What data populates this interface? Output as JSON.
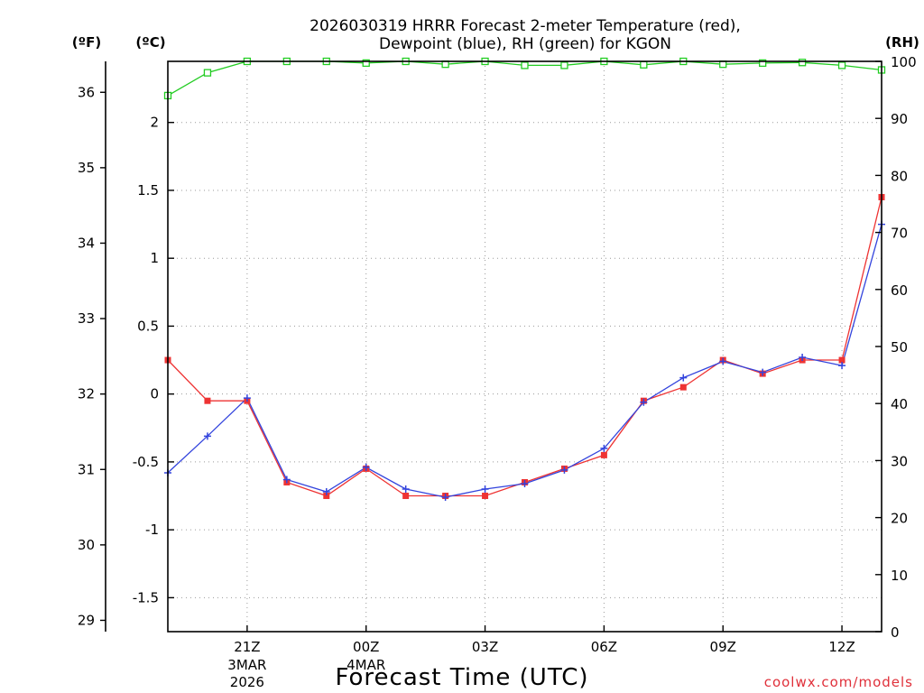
{
  "title_line1": "2026030319 HRRR Forecast 2-meter Temperature (red),",
  "title_line2": "Dewpoint (blue), RH (green) for KGON",
  "units": {
    "f": "(ºF)",
    "c": "(ºC)",
    "rh": "(RH)"
  },
  "xlabel": "Forecast Time (UTC)",
  "watermark": "coolwx.com/models",
  "colors": {
    "temperature": "#ee3333",
    "dewpoint": "#3344dd",
    "rh": "#22cc22"
  },
  "chart_data": {
    "type": "line",
    "title": "2026030319 HRRR Forecast 2-meter Temperature (red), Dewpoint (blue), RH (green) for KGON",
    "x": [
      19,
      20,
      21,
      22,
      23,
      24,
      25,
      26,
      27,
      28,
      29,
      30,
      31,
      32,
      33,
      34,
      35,
      36,
      37
    ],
    "xlim": [
      19,
      37
    ],
    "series": [
      {
        "name": "Temperature (°C)",
        "values": [
          0.25,
          -0.05,
          -0.05,
          -0.65,
          -0.75,
          -0.55,
          -0.75,
          -0.75,
          -0.75,
          -0.65,
          -0.55,
          -0.45,
          -0.05,
          0.05,
          0.25,
          0.15,
          0.25,
          0.25,
          1.45
        ]
      },
      {
        "name": "Dewpoint (°C)",
        "values": [
          -0.58,
          -0.31,
          -0.03,
          -0.63,
          -0.72,
          -0.54,
          -0.7,
          -0.76,
          -0.7,
          -0.66,
          -0.56,
          -0.4,
          -0.06,
          0.12,
          0.24,
          0.16,
          0.27,
          0.21,
          1.25
        ]
      },
      {
        "name": "RH (%)",
        "values": [
          94,
          98,
          100,
          100,
          100,
          99.7,
          100,
          99.5,
          100,
          99.3,
          99.3,
          100,
          99.4,
          100,
          99.5,
          99.7,
          99.8,
          99.3,
          98.5
        ]
      }
    ],
    "ylim_c": [
      -1.75,
      2.45
    ],
    "ylim_rh": [
      0,
      100
    ],
    "y_ticks_c": [
      "2",
      "1.5",
      "1",
      "0.5",
      "0",
      "-0.5",
      "-1",
      "-1.5"
    ],
    "y_ticks_c_values": [
      2,
      1.5,
      1,
      0.5,
      0,
      -0.5,
      -1,
      -1.5
    ],
    "y_ticks_f": [
      "36",
      "35",
      "34",
      "33",
      "32",
      "31",
      "30",
      "29"
    ],
    "y_ticks_f_values": [
      36,
      35,
      34,
      33,
      32,
      31,
      30,
      29
    ],
    "y_ticks_rh": [
      "100",
      "90",
      "80",
      "70",
      "60",
      "50",
      "40",
      "30",
      "20",
      "10",
      "0"
    ],
    "y_ticks_rh_values": [
      100,
      90,
      80,
      70,
      60,
      50,
      40,
      30,
      20,
      10,
      0
    ],
    "x_ticks": [
      {
        "x": 21,
        "label": "21Z",
        "date": "3MAR",
        "year": "2026"
      },
      {
        "x": 24,
        "label": "00Z",
        "date": "4MAR",
        "year": ""
      },
      {
        "x": 27,
        "label": "03Z",
        "date": "",
        "year": ""
      },
      {
        "x": 30,
        "label": "06Z",
        "date": "",
        "year": ""
      },
      {
        "x": 33,
        "label": "09Z",
        "date": "",
        "year": ""
      },
      {
        "x": 36,
        "label": "12Z",
        "date": "",
        "year": ""
      }
    ],
    "grid": true
  }
}
